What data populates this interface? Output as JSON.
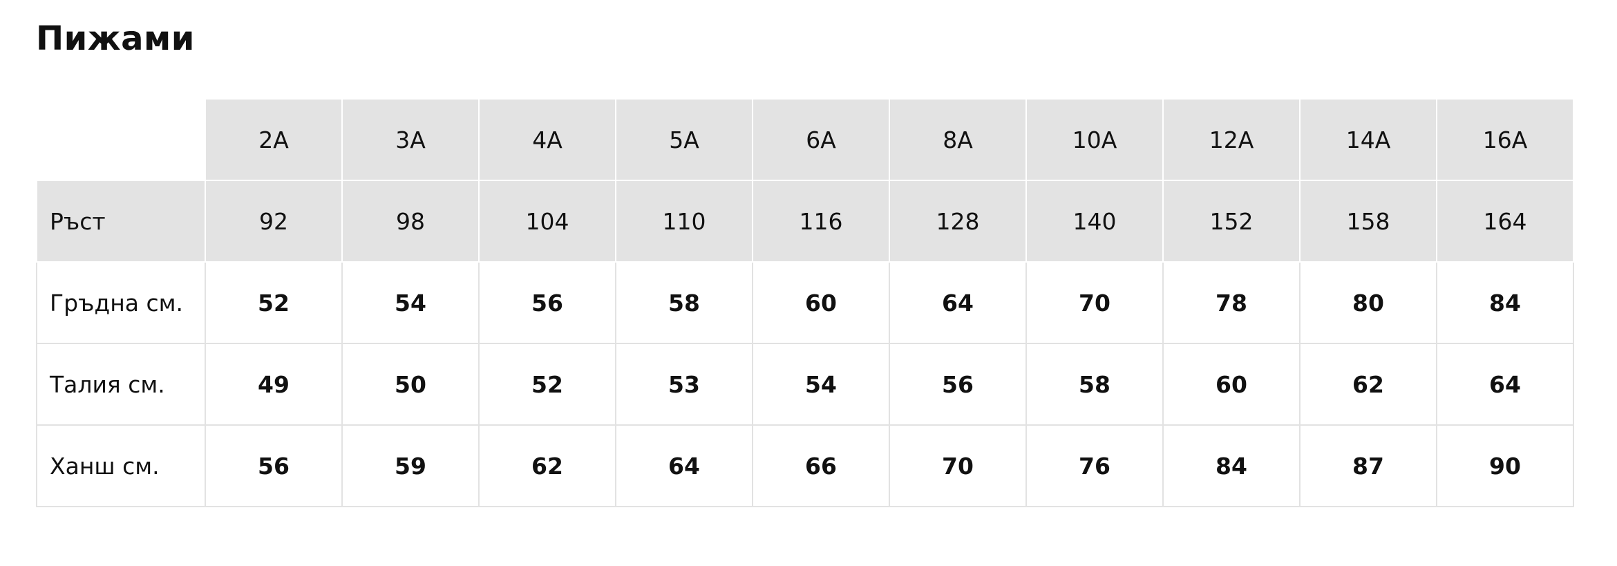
{
  "header": {
    "title": "Пижами"
  },
  "table": {
    "columns": [
      "2A",
      "3A",
      "4A",
      "5A",
      "6A",
      "8A",
      "10A",
      "12A",
      "14A",
      "16A"
    ],
    "rows": [
      {
        "label": "Ръст",
        "values": [
          92,
          98,
          104,
          110,
          116,
          128,
          140,
          152,
          158,
          164
        ]
      },
      {
        "label": "Гръдна см.",
        "values": [
          52,
          54,
          56,
          58,
          60,
          64,
          70,
          78,
          80,
          84
        ]
      },
      {
        "label": "Талия см.",
        "values": [
          49,
          50,
          52,
          53,
          54,
          56,
          58,
          60,
          62,
          64
        ]
      },
      {
        "label": "Ханш см.",
        "values": [
          56,
          59,
          62,
          64,
          66,
          70,
          76,
          84,
          87,
          90
        ]
      }
    ]
  }
}
